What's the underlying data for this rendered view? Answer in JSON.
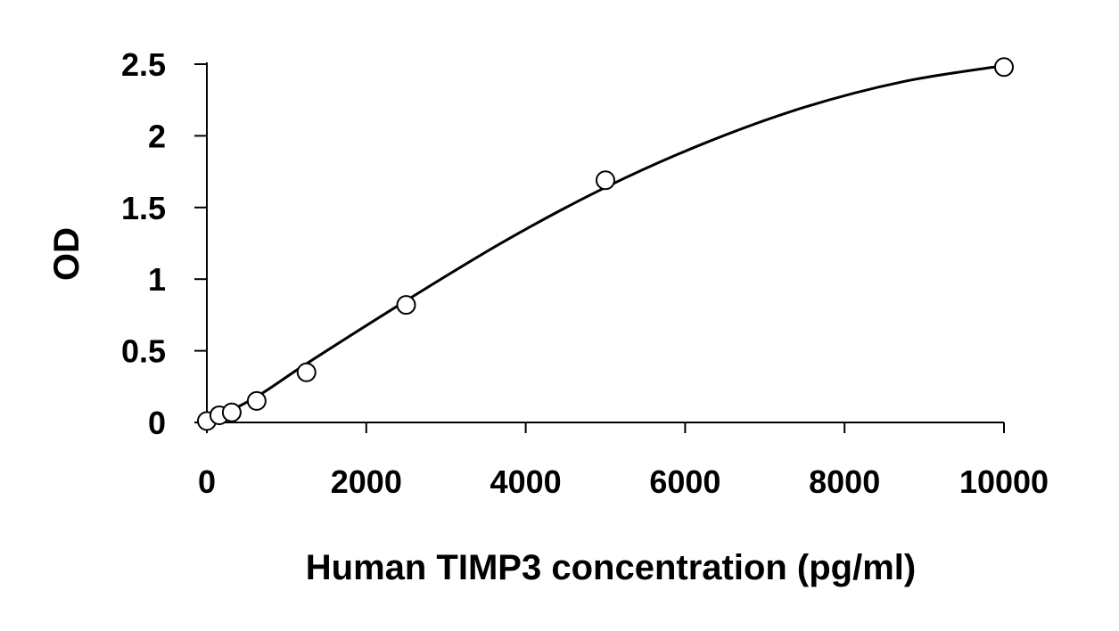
{
  "chart_data": {
    "type": "scatter",
    "title": "",
    "xlabel": "Human TIMP3 concentration (pg/ml)",
    "ylabel": "OD",
    "xlim": [
      0,
      10000
    ],
    "ylim": [
      0,
      2.5
    ],
    "x_ticks": [
      0,
      2000,
      4000,
      6000,
      8000,
      10000
    ],
    "x_tick_labels": [
      "0",
      "2000",
      "4000",
      "6000",
      "8000",
      "10000"
    ],
    "y_ticks": [
      0,
      0.5,
      1,
      1.5,
      2,
      2.5
    ],
    "y_tick_labels": [
      "0",
      "0.5",
      "1",
      "1.5",
      "2",
      "2.5"
    ],
    "grid": false,
    "legend": "none",
    "series": [
      {
        "kind": "points",
        "marker": "open-circle",
        "x": [
          0,
          156,
          312,
          625,
          1250,
          2500,
          5000,
          10000
        ],
        "y": [
          0.01,
          0.05,
          0.07,
          0.15,
          0.35,
          0.82,
          1.69,
          2.48
        ]
      },
      {
        "kind": "fitted-curve",
        "x": [
          0,
          625,
          1250,
          2500,
          3750,
          5000,
          6250,
          7500,
          8750,
          10000
        ],
        "y": [
          0.0,
          0.18,
          0.41,
          0.85,
          1.27,
          1.64,
          1.95,
          2.2,
          2.38,
          2.49
        ]
      }
    ],
    "colors": {
      "line": "#000000",
      "marker_fill": "#ffffff",
      "marker_stroke": "#000000"
    }
  }
}
